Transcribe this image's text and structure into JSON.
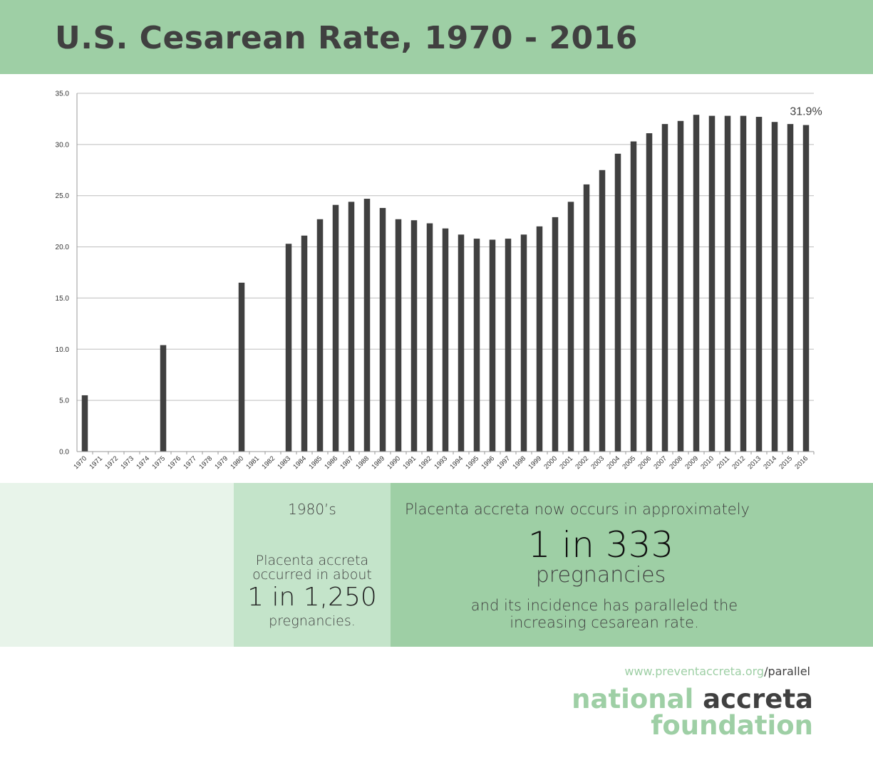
{
  "header": {
    "title": "U.S. Cesarean Rate, 1970 - 2016"
  },
  "chart_data": {
    "type": "bar",
    "title": "",
    "xlabel": "",
    "ylabel": "",
    "ylim": [
      0,
      35
    ],
    "y_ticks": [
      "0.0",
      "5.0",
      "10.0",
      "15.0",
      "20.0",
      "25.0",
      "30.0",
      "35.0"
    ],
    "grid": true,
    "categories": [
      "1970",
      "1971",
      "1972",
      "1973",
      "1974",
      "1975",
      "1976",
      "1977",
      "1978",
      "1979",
      "1980",
      "1981",
      "1982",
      "1983",
      "1984",
      "1985",
      "1986",
      "1987",
      "1988",
      "1989",
      "1990",
      "1991",
      "1992",
      "1993",
      "1994",
      "1995",
      "1996",
      "1997",
      "1998",
      "1999",
      "2000",
      "2001",
      "2002",
      "2003",
      "2004",
      "2005",
      "2006",
      "2007",
      "2008",
      "2009",
      "2010",
      "2011",
      "2012",
      "2013",
      "2014",
      "2015",
      "2016"
    ],
    "values": [
      5.5,
      null,
      null,
      null,
      null,
      10.4,
      null,
      null,
      null,
      null,
      16.5,
      null,
      null,
      20.3,
      21.1,
      22.7,
      24.1,
      24.4,
      24.7,
      23.8,
      22.7,
      22.6,
      22.3,
      21.8,
      21.2,
      20.8,
      20.7,
      20.8,
      21.2,
      22.0,
      22.9,
      24.4,
      26.1,
      27.5,
      29.1,
      30.3,
      31.1,
      32.0,
      32.3,
      32.9,
      32.8,
      32.8,
      32.8,
      32.7,
      32.2,
      32.0,
      31.9
    ],
    "data_labels": [
      {
        "category": "2016",
        "text": "31.9%"
      }
    ],
    "bar_color": "#404040"
  },
  "info": {
    "decade": "1980’s",
    "past_line1": "Placenta accreta",
    "past_line2": "occurred in about",
    "past_ratio": "1 in 1,250",
    "past_suffix": "pregnancies.",
    "now_line": "Placenta accreta now occurs in approximately",
    "now_ratio": "1 in 333",
    "now_suffix": "pregnancies",
    "now_line3": "and its incidence has paralleled the",
    "now_line4": "increasing cesarean rate."
  },
  "footer": {
    "website": "www.preventaccreta.org",
    "website_suffix": "/parallel",
    "logo_word1": "national",
    "logo_word2": "accreta",
    "logo_word3": "foundation"
  },
  "colors": {
    "header_bg": "#9ecfa5",
    "panel_light": "#e8f4ea",
    "panel_mid": "#c4e4ca",
    "panel_dark": "#9ecfa5",
    "text_dark": "#404040"
  }
}
